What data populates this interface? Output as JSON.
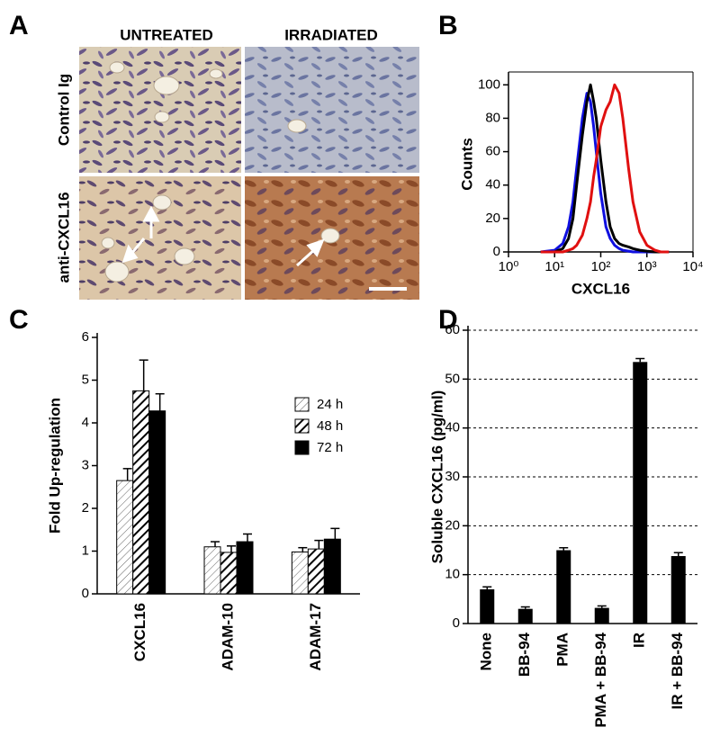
{
  "panel_a": {
    "label": "A",
    "columns": [
      "UNTREATED",
      "IRRADIATED"
    ],
    "rows": [
      "Control Ig",
      "anti-CXCL16"
    ]
  },
  "chart_data": [
    {
      "type": "line",
      "panel_label": "B",
      "xlabel": "CXCL16",
      "ylabel": "Counts",
      "xscale": "log",
      "xlim": [
        1,
        10000
      ],
      "xticks": [
        {
          "value": 1,
          "label": "10⁰"
        },
        {
          "value": 10,
          "label": "10¹"
        },
        {
          "value": 100,
          "label": "10²"
        },
        {
          "value": 1000,
          "label": "10³"
        },
        {
          "value": 10000,
          "label": "10⁴"
        }
      ],
      "ylim": [
        0,
        105
      ],
      "yticks": [
        0,
        20,
        40,
        60,
        80,
        100
      ],
      "x": [
        5,
        10,
        15,
        20,
        25,
        30,
        40,
        50,
        60,
        70,
        80,
        100,
        130,
        160,
        200,
        250,
        300,
        400,
        500,
        700,
        1000,
        1500,
        2000,
        3000
      ],
      "series": [
        {
          "color": "#1010e0",
          "values": [
            0,
            1,
            5,
            15,
            30,
            50,
            80,
            95,
            90,
            75,
            60,
            35,
            15,
            8,
            4,
            2,
            1,
            0.5,
            0,
            0,
            0,
            0,
            0,
            0
          ]
        },
        {
          "color": "#000000",
          "values": [
            0,
            0,
            2,
            8,
            20,
            40,
            70,
            90,
            100,
            90,
            80,
            55,
            30,
            15,
            8,
            5,
            4,
            3,
            2,
            1,
            0.5,
            0,
            0,
            0
          ]
        },
        {
          "color": "#e01010",
          "values": [
            0,
            0,
            0,
            1,
            2,
            4,
            10,
            20,
            30,
            45,
            55,
            75,
            85,
            90,
            100,
            95,
            80,
            50,
            30,
            12,
            4,
            1,
            0,
            0
          ]
        }
      ]
    },
    {
      "type": "bar",
      "panel_label": "C",
      "ylabel": "Fold Up-regulation",
      "legend": "right",
      "categories": [
        "CXCL16",
        "ADAM-10",
        "ADAM-17"
      ],
      "ylim": [
        0,
        6
      ],
      "yticks": [
        0,
        1,
        2,
        3,
        4,
        5,
        6
      ],
      "series": [
        {
          "name": "24 h",
          "color": "#555555",
          "pattern": "light-hatch",
          "values": [
            2.65,
            1.1,
            0.98
          ],
          "errors": [
            0.28,
            0.12,
            0.1
          ]
        },
        {
          "name": "48 h",
          "color": "#000000",
          "pattern": "dark-hatch",
          "values": [
            4.75,
            0.97,
            1.05
          ],
          "errors": [
            0.72,
            0.15,
            0.2
          ]
        },
        {
          "name": "72 h",
          "color": "#000000",
          "pattern": "solid",
          "values": [
            4.28,
            1.22,
            1.28
          ],
          "errors": [
            0.4,
            0.18,
            0.25
          ]
        }
      ]
    },
    {
      "type": "bar",
      "panel_label": "D",
      "ylabel": "Soluble CXCL16 (pg/ml)",
      "grid": true,
      "color": "#000000",
      "categories": [
        "None",
        "BB-94",
        "PMA",
        "PMA + BB-94",
        "IR",
        "IR + BB-94"
      ],
      "values": [
        7,
        3,
        15,
        3.2,
        53.5,
        13.8
      ],
      "errors": [
        0.5,
        0.4,
        0.5,
        0.4,
        0.7,
        0.7
      ],
      "ylim": [
        0,
        60
      ],
      "yticks": [
        0,
        10,
        20,
        30,
        40,
        50,
        60
      ]
    }
  ]
}
